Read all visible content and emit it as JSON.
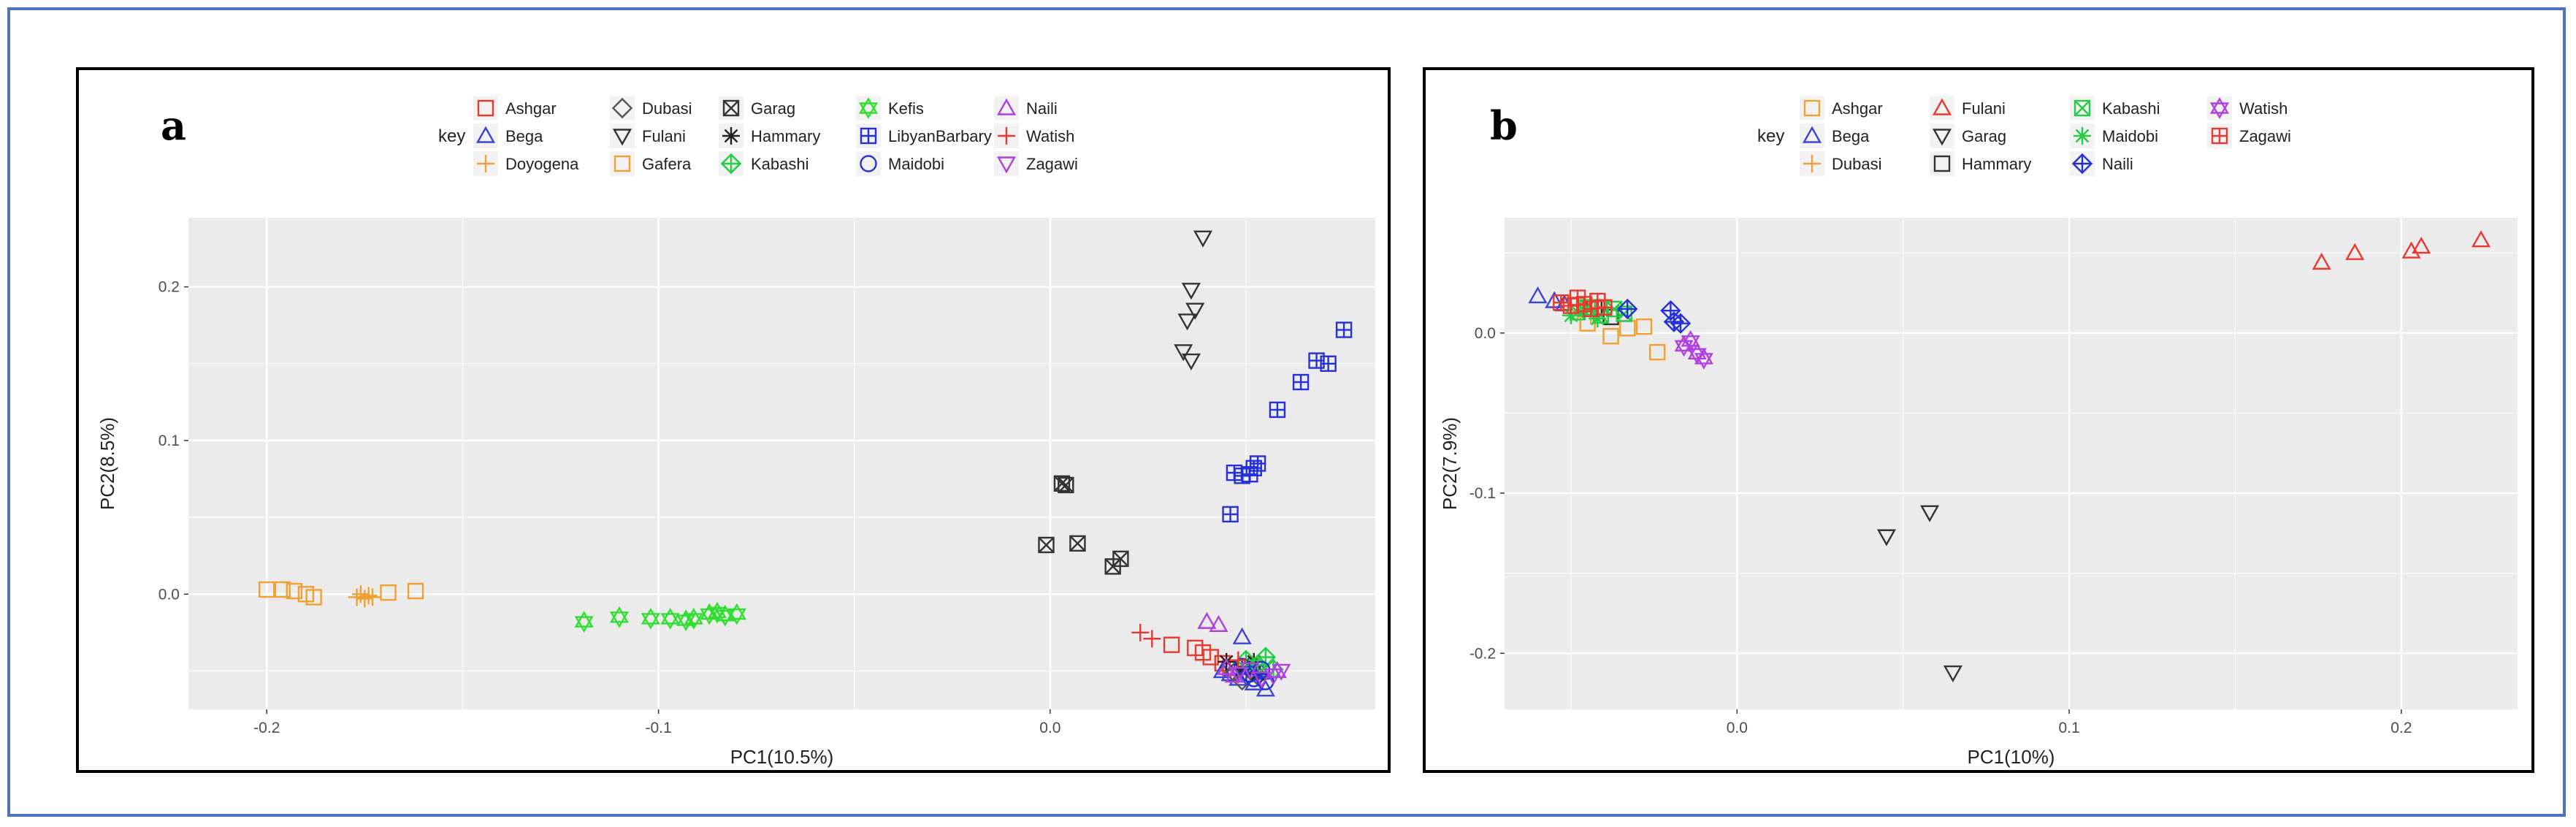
{
  "colors": {
    "frame": "#4f72c0",
    "panel_bg": "#ebebeb",
    "grid": "#ffffff"
  },
  "chart_data": [
    {
      "type": "scatter",
      "panel_label": "a",
      "title": "",
      "xlabel": "PC1(10.5%)",
      "ylabel": "PC2(8.5%)",
      "xlim": [
        -0.22,
        0.083
      ],
      "ylim": [
        -0.075,
        0.245
      ],
      "xticks": [
        -0.2,
        -0.1,
        0.0
      ],
      "xtick_labels": [
        "-0.2",
        "-0.1",
        "0.0"
      ],
      "yticks": [
        0.0,
        0.1,
        0.2
      ],
      "ytick_labels": [
        "0.0",
        "0.1",
        "0.2"
      ],
      "grid": true,
      "legend": {
        "title": "key",
        "placement": "top",
        "columns": [
          [
            "Ashgar",
            "Bega",
            "Doyogena"
          ],
          [
            "Dubasi",
            "Fulani",
            "Gafera"
          ],
          [
            "Garag",
            "Hammary",
            "Kabashi"
          ],
          [
            "Kefis",
            "LibyanBarbary",
            "Maidobi"
          ],
          [
            "Naili",
            "Watish",
            "Zagawi"
          ]
        ]
      },
      "series": [
        {
          "name": "Ashgar",
          "color": "#e8392f",
          "marker": "square",
          "x": [
            0.031,
            0.037,
            0.039,
            0.041,
            0.044,
            0.046
          ],
          "y": [
            -0.033,
            -0.035,
            -0.038,
            -0.041,
            -0.045,
            -0.048
          ]
        },
        {
          "name": "Bega",
          "color": "#3a45d8",
          "marker": "triangle-up",
          "x": [
            0.046,
            0.048,
            0.05,
            0.052,
            0.054,
            0.055,
            0.044,
            0.049
          ],
          "y": [
            -0.052,
            -0.055,
            -0.048,
            -0.058,
            -0.051,
            -0.062,
            -0.05,
            -0.028
          ]
        },
        {
          "name": "Doyogena",
          "color": "#f0a030",
          "marker": "plus",
          "x": [
            -0.177,
            -0.176,
            -0.175,
            -0.174,
            -0.173
          ],
          "y": [
            -0.002,
            0.0,
            -0.003,
            -0.001,
            -0.002
          ]
        },
        {
          "name": "Dubasi",
          "color": "#555555",
          "marker": "diamond",
          "x": [
            0.047,
            0.049,
            0.051,
            0.053
          ],
          "y": [
            -0.051,
            -0.056,
            -0.047,
            -0.053
          ]
        },
        {
          "name": "Fulani",
          "color": "#333333",
          "marker": "triangle-down",
          "x": [
            0.039,
            0.036,
            0.037,
            0.035,
            0.034,
            0.036
          ],
          "y": [
            0.232,
            0.198,
            0.185,
            0.178,
            0.158,
            0.152
          ]
        },
        {
          "name": "Gafera",
          "color": "#f0a030",
          "marker": "square",
          "x": [
            -0.2,
            -0.196,
            -0.193,
            -0.19,
            -0.188,
            -0.169,
            -0.162
          ],
          "y": [
            0.003,
            0.003,
            0.002,
            0.0,
            -0.002,
            0.001,
            0.002
          ]
        },
        {
          "name": "Garag",
          "color": "#333333",
          "marker": "square-x",
          "x": [
            0.003,
            0.004,
            0.007,
            -0.001,
            0.016,
            0.018
          ],
          "y": [
            0.072,
            0.071,
            0.033,
            0.032,
            0.018,
            0.023
          ]
        },
        {
          "name": "Hammary",
          "color": "#222222",
          "marker": "star",
          "x": [
            0.045,
            0.049,
            0.052,
            0.053
          ],
          "y": [
            -0.044,
            -0.049,
            -0.044,
            -0.052
          ]
        },
        {
          "name": "Kabashi",
          "color": "#22cc44",
          "marker": "diamond-plus",
          "x": [
            0.05,
            0.053,
            0.055,
            0.057
          ],
          "y": [
            -0.043,
            -0.046,
            -0.041,
            -0.049
          ]
        },
        {
          "name": "Kefis",
          "color": "#2ee02e",
          "marker": "star-of-david",
          "x": [
            -0.119,
            -0.11,
            -0.102,
            -0.097,
            -0.093,
            -0.091,
            -0.087,
            -0.085,
            -0.083,
            -0.08
          ],
          "y": [
            -0.018,
            -0.015,
            -0.016,
            -0.016,
            -0.017,
            -0.016,
            -0.013,
            -0.012,
            -0.014,
            -0.013
          ]
        },
        {
          "name": "LibyanBarbary",
          "color": "#2430d8",
          "marker": "square-plus",
          "x": [
            0.046,
            0.047,
            0.049,
            0.051,
            0.052,
            0.053,
            0.058,
            0.064,
            0.068,
            0.071,
            0.075
          ],
          "y": [
            0.052,
            0.079,
            0.077,
            0.078,
            0.082,
            0.085,
            0.12,
            0.138,
            0.152,
            0.15,
            0.172
          ]
        },
        {
          "name": "Maidobi",
          "color": "#2430d8",
          "marker": "circle",
          "x": [
            0.049,
            0.051,
            0.052,
            0.054,
            0.055
          ],
          "y": [
            -0.047,
            -0.052,
            -0.055,
            -0.049,
            -0.057
          ]
        },
        {
          "name": "Naili",
          "color": "#b040e0",
          "marker": "triangle-up",
          "x": [
            0.04,
            0.043,
            0.045,
            0.047,
            0.058
          ],
          "y": [
            -0.018,
            -0.02,
            -0.048,
            -0.053,
            -0.05
          ]
        },
        {
          "name": "Watish",
          "color": "#e8392f",
          "marker": "plus",
          "x": [
            0.023,
            0.026,
            0.048
          ],
          "y": [
            -0.025,
            -0.029,
            -0.043
          ]
        },
        {
          "name": "Zagawi",
          "color": "#b040e0",
          "marker": "triangle-down",
          "x": [
            0.048,
            0.051,
            0.054,
            0.057,
            0.059
          ],
          "y": [
            -0.052,
            -0.049,
            -0.055,
            -0.053,
            -0.05
          ]
        }
      ]
    },
    {
      "type": "scatter",
      "panel_label": "b",
      "title": "",
      "xlabel": "PC1(10%)",
      "ylabel": "PC2(7.9%)",
      "xlim": [
        -0.07,
        0.235
      ],
      "ylim": [
        -0.235,
        0.072
      ],
      "xticks": [
        0.0,
        0.1,
        0.2
      ],
      "xtick_labels": [
        "0.0",
        "0.1",
        "0.2"
      ],
      "yticks": [
        -0.2,
        -0.1,
        0.0
      ],
      "ytick_labels": [
        "-0.2",
        "-0.1",
        "0.0"
      ],
      "grid": true,
      "legend": {
        "title": "key",
        "placement": "top",
        "columns": [
          [
            "Ashgar",
            "Bega",
            "Dubasi"
          ],
          [
            "Fulani",
            "Garag",
            "Hammary"
          ],
          [
            "Kabashi",
            "Maidobi",
            "Naili"
          ],
          [
            "Watish",
            "Zagawi"
          ]
        ]
      },
      "series": [
        {
          "name": "Ashgar",
          "color": "#f0a030",
          "marker": "square",
          "x": [
            -0.038,
            -0.033,
            -0.028,
            -0.024,
            -0.045
          ],
          "y": [
            -0.002,
            0.003,
            0.004,
            -0.012,
            0.006
          ]
        },
        {
          "name": "Bega",
          "color": "#3a45d8",
          "marker": "triangle-up",
          "x": [
            -0.06,
            -0.055,
            -0.052
          ],
          "y": [
            0.023,
            0.02,
            0.018
          ]
        },
        {
          "name": "Dubasi",
          "color": "#f0a030",
          "marker": "plus",
          "x": [
            -0.048,
            -0.044
          ],
          "y": [
            0.014,
            0.011
          ]
        },
        {
          "name": "Fulani",
          "color": "#e8392f",
          "marker": "triangle-up",
          "x": [
            0.176,
            0.186,
            0.203,
            0.206,
            0.224
          ],
          "y": [
            0.044,
            0.05,
            0.051,
            0.054,
            0.058
          ]
        },
        {
          "name": "Garag",
          "color": "#333333",
          "marker": "triangle-down",
          "x": [
            0.045,
            0.058,
            0.065
          ],
          "y": [
            -0.127,
            -0.112,
            -0.212
          ]
        },
        {
          "name": "Hammary",
          "color": "#333333",
          "marker": "square",
          "x": [
            -0.043,
            -0.038
          ],
          "y": [
            0.016,
            0.01
          ]
        },
        {
          "name": "Kabashi",
          "color": "#22cc44",
          "marker": "square-x",
          "x": [
            -0.048,
            -0.045,
            -0.041,
            -0.037,
            -0.034
          ],
          "y": [
            0.013,
            0.016,
            0.011,
            0.015,
            0.012
          ]
        },
        {
          "name": "Maidobi",
          "color": "#22cc44",
          "marker": "star",
          "x": [
            -0.05,
            -0.046,
            -0.042
          ],
          "y": [
            0.011,
            0.014,
            0.009
          ]
        },
        {
          "name": "Naili",
          "color": "#2430d8",
          "marker": "diamond-plus",
          "x": [
            -0.033,
            -0.02,
            -0.019,
            -0.017
          ],
          "y": [
            0.015,
            0.014,
            0.007,
            0.006
          ]
        },
        {
          "name": "Watish",
          "color": "#b040e0",
          "marker": "star-of-david",
          "x": [
            -0.016,
            -0.012,
            -0.01,
            -0.014
          ],
          "y": [
            -0.008,
            -0.013,
            -0.016,
            -0.005
          ]
        },
        {
          "name": "Zagawi",
          "color": "#e8392f",
          "marker": "square-plus",
          "x": [
            -0.053,
            -0.05,
            -0.048,
            -0.046,
            -0.044,
            -0.042,
            -0.04
          ],
          "y": [
            0.019,
            0.017,
            0.022,
            0.018,
            0.015,
            0.02,
            0.016
          ]
        }
      ]
    }
  ]
}
